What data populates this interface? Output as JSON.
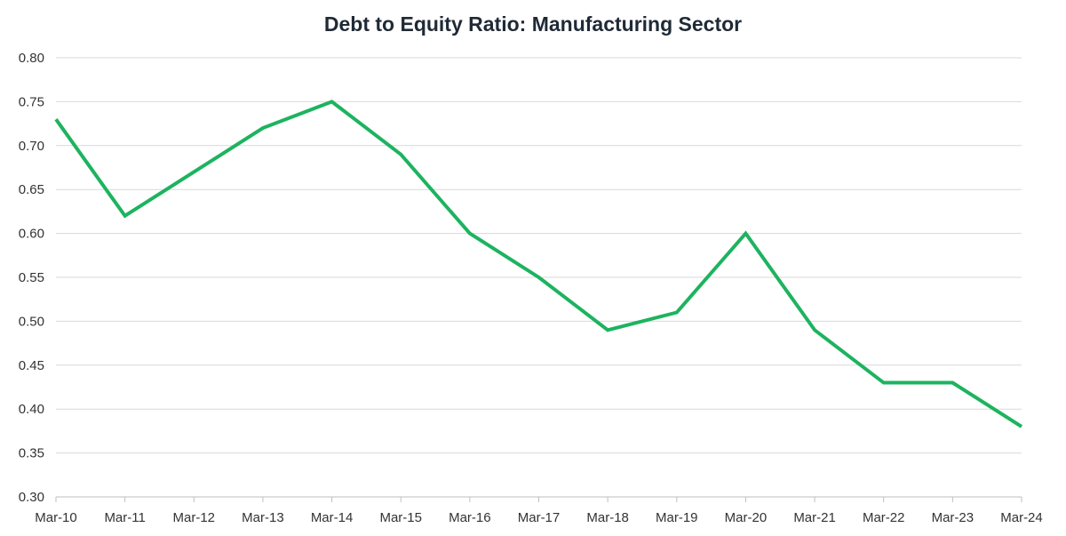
{
  "chart_data": {
    "type": "line",
    "title": "Debt to Equity Ratio: Manufacturing Sector",
    "xlabel": "",
    "ylabel": "",
    "categories": [
      "Mar-10",
      "Mar-11",
      "Mar-12",
      "Mar-13",
      "Mar-14",
      "Mar-15",
      "Mar-16",
      "Mar-17",
      "Mar-18",
      "Mar-19",
      "Mar-20",
      "Mar-21",
      "Mar-22",
      "Mar-23",
      "Mar-24"
    ],
    "series": [
      {
        "values": [
          0.73,
          0.62,
          0.67,
          0.72,
          0.75,
          0.69,
          0.6,
          0.55,
          0.49,
          0.51,
          0.6,
          0.49,
          0.43,
          0.43,
          0.38
        ],
        "color": "#1db35f"
      }
    ],
    "ylim": [
      0.3,
      0.8
    ],
    "yticks": [
      "0.30",
      "0.35",
      "0.40",
      "0.45",
      "0.50",
      "0.55",
      "0.60",
      "0.65",
      "0.70",
      "0.75",
      "0.80"
    ],
    "grid": true,
    "legend": "none",
    "colors": {
      "gridline": "#d9d9d9",
      "axis": "#bfbfbf",
      "title": "#1f2a36",
      "tick_text": "#333333"
    }
  }
}
